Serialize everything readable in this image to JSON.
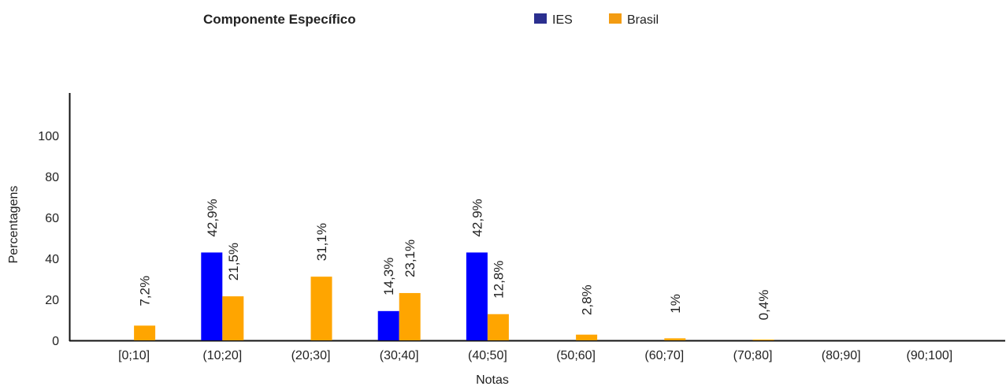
{
  "chart_data": {
    "type": "bar",
    "title": "Componente Específico",
    "xlabel": "Notas",
    "ylabel": "Percentagens",
    "categories": [
      "[0;10]",
      "(10;20]",
      "(20;30]",
      "(30;40]",
      "(40;50]",
      "(50;60]",
      "(60;70]",
      "(70;80]",
      "(80;90]",
      "(90;100]"
    ],
    "series": [
      {
        "name": "IES",
        "color": "#0000ff",
        "values": [
          0,
          42.9,
          0,
          14.3,
          42.9,
          0,
          0,
          0,
          0,
          0
        ],
        "labels": [
          "",
          "42,9%",
          "",
          "14,3%",
          "42,9%",
          "",
          "",
          "",
          "",
          ""
        ]
      },
      {
        "name": "Brasil",
        "color": "#ffa500",
        "values": [
          7.2,
          21.5,
          31.1,
          23.1,
          12.8,
          2.8,
          1,
          0.4,
          0,
          0
        ],
        "labels": [
          "7,2%",
          "21,5%",
          "31,1%",
          "23,1%",
          "12,8%",
          "2,8%",
          "1%",
          "0,4%",
          "",
          ""
        ]
      }
    ],
    "yticks": [
      0,
      20,
      40,
      60,
      80,
      100
    ],
    "ylim": [
      0,
      120
    ],
    "grid": false,
    "legend": "top",
    "legend_swatch_colors": {
      "IES": "#2b2f8f",
      "Brasil": "#f39c12"
    }
  }
}
